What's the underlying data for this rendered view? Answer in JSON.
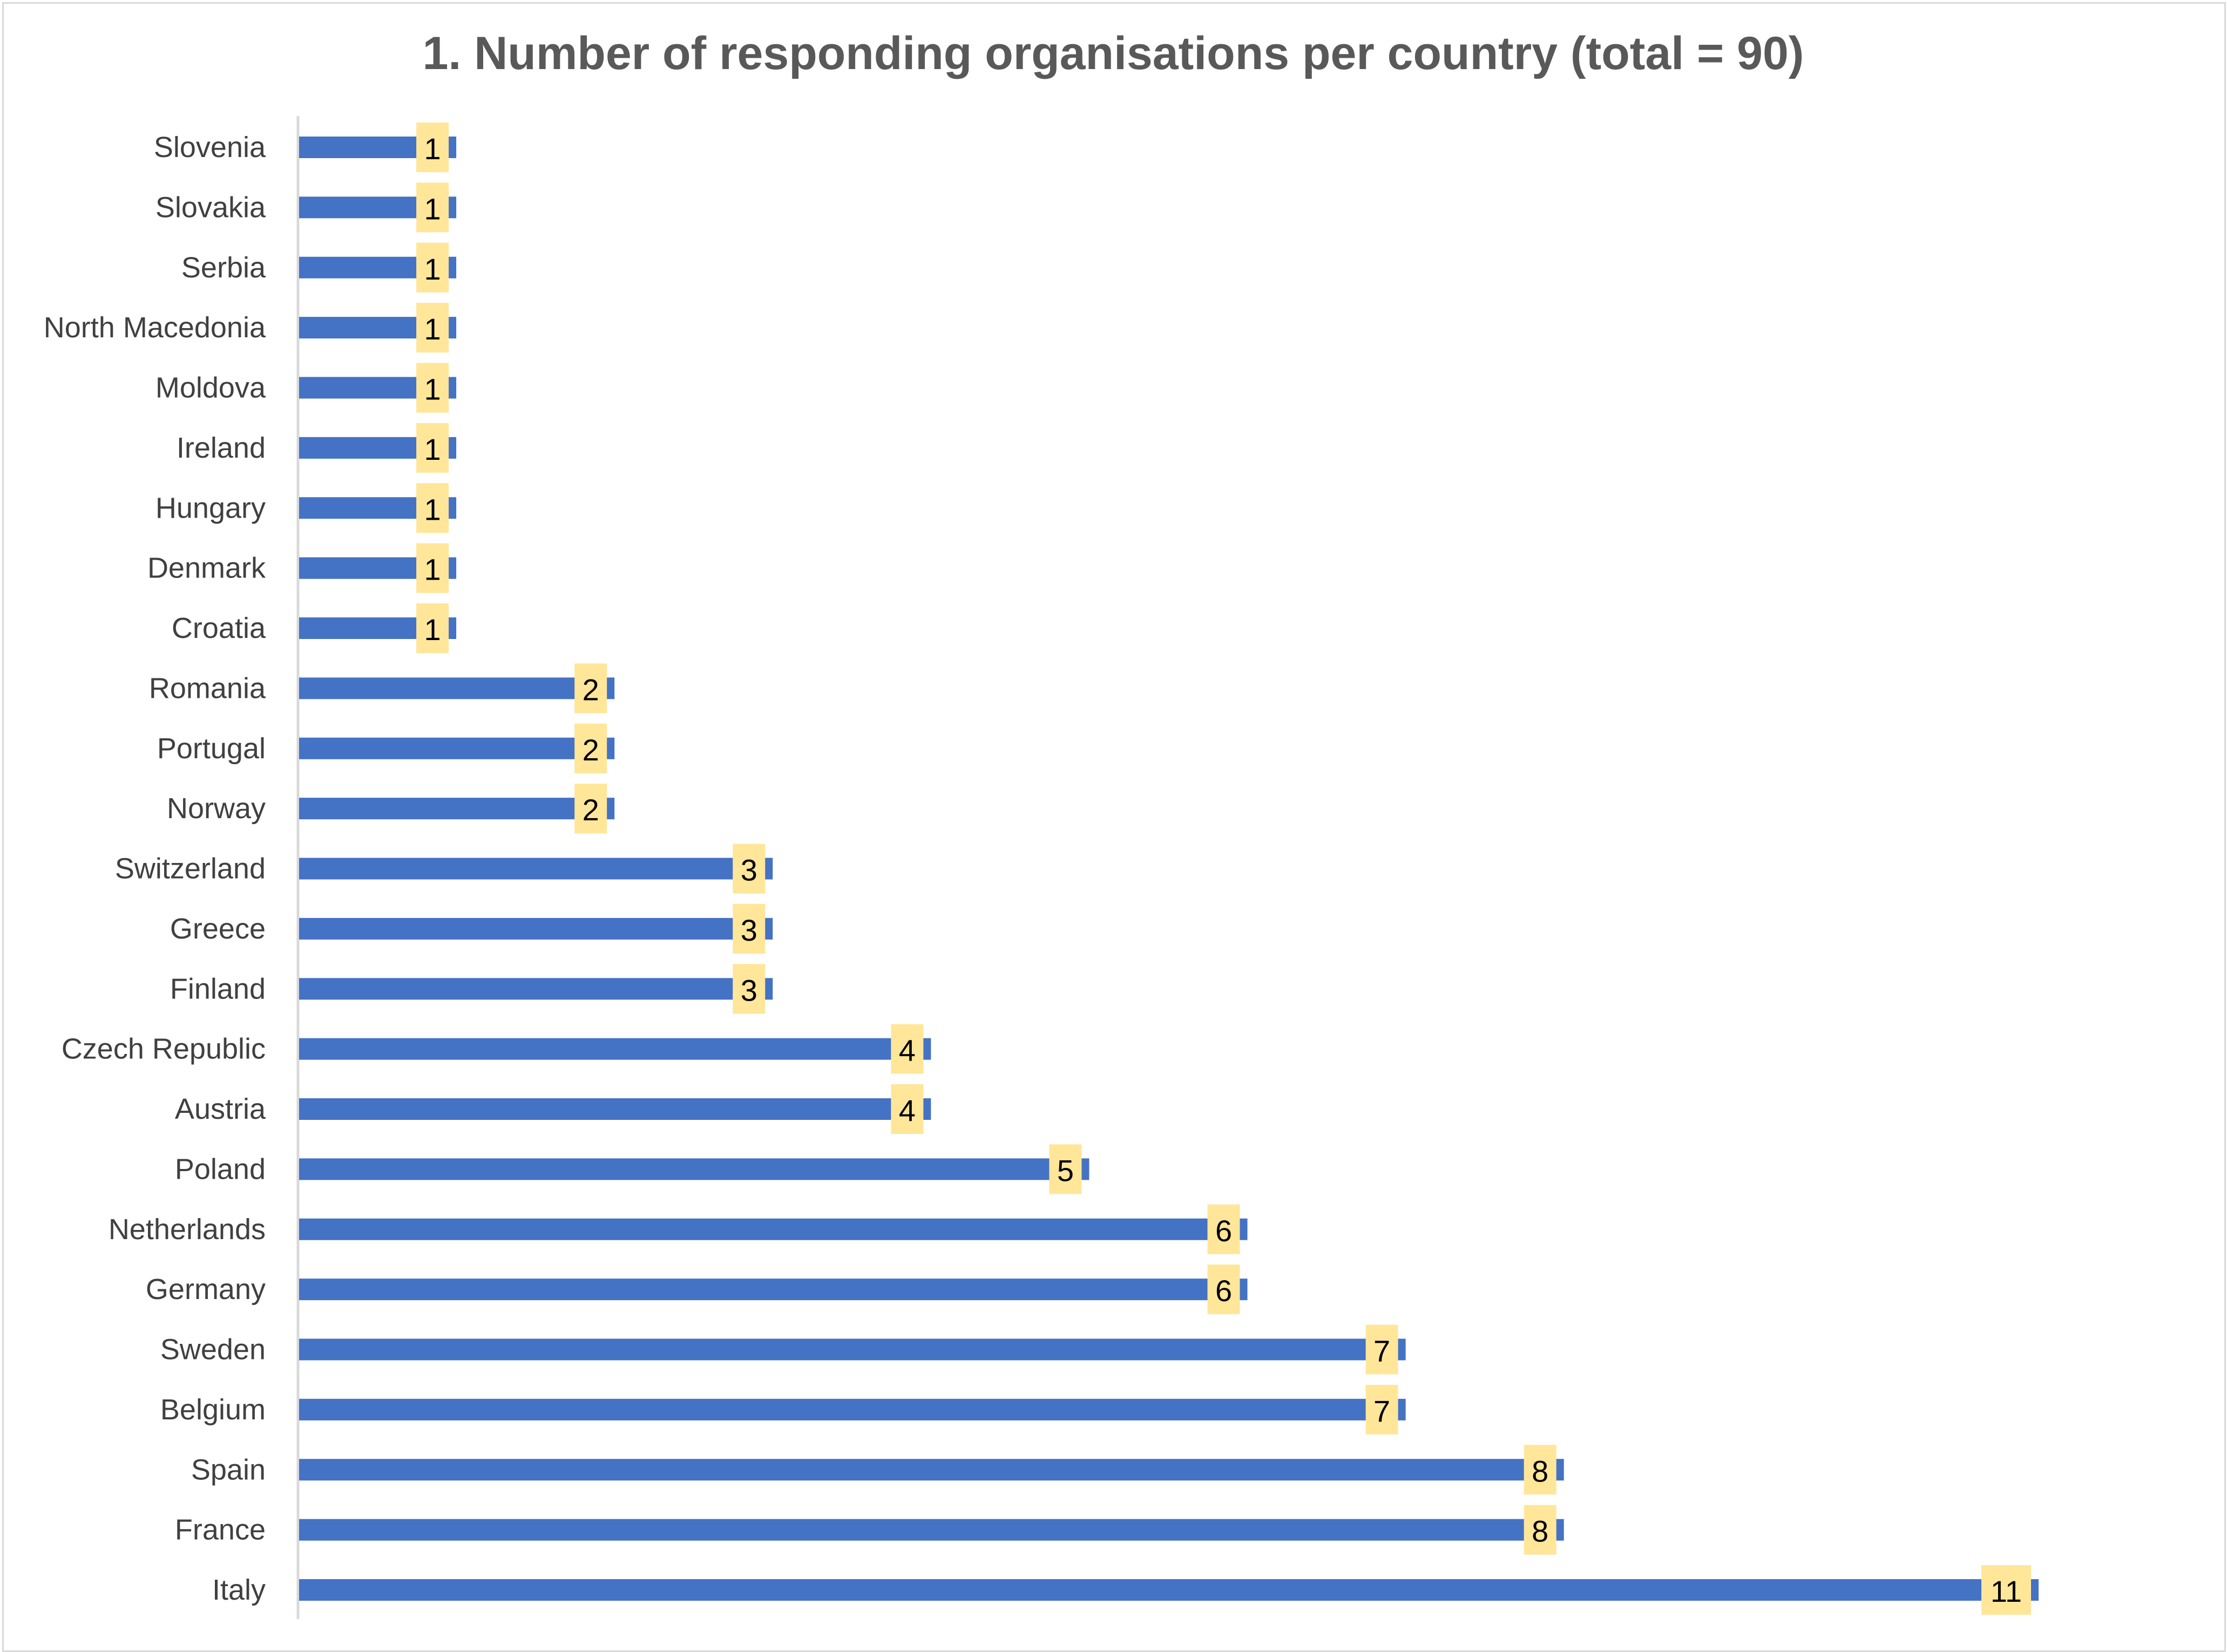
{
  "chart_data": {
    "type": "bar",
    "orientation": "horizontal",
    "title": "1. Number of responding organisations per country (total = 90)",
    "xlabel": "",
    "ylabel": "",
    "xlim": [
      0,
      11
    ],
    "grid": false,
    "legend": "none",
    "categories": [
      "Slovenia",
      "Slovakia",
      "Serbia",
      "North Macedonia",
      "Moldova",
      "Ireland",
      "Hungary",
      "Denmark",
      "Croatia",
      "Romania",
      "Portugal",
      "Norway",
      "Switzerland",
      "Greece",
      "Finland",
      "Czech Republic",
      "Austria",
      "Poland",
      "Netherlands",
      "Germany",
      "Sweden",
      "Belgium",
      "Spain",
      "France",
      "Italy"
    ],
    "values": [
      1,
      1,
      1,
      1,
      1,
      1,
      1,
      1,
      1,
      2,
      2,
      2,
      3,
      3,
      3,
      4,
      4,
      5,
      6,
      6,
      7,
      7,
      8,
      8,
      11
    ],
    "colors": {
      "bar": "#4472c4",
      "label_bg": "#ffe699",
      "title": "#595959",
      "axis": "#d9d9d9",
      "tick_text": "#404040"
    }
  }
}
